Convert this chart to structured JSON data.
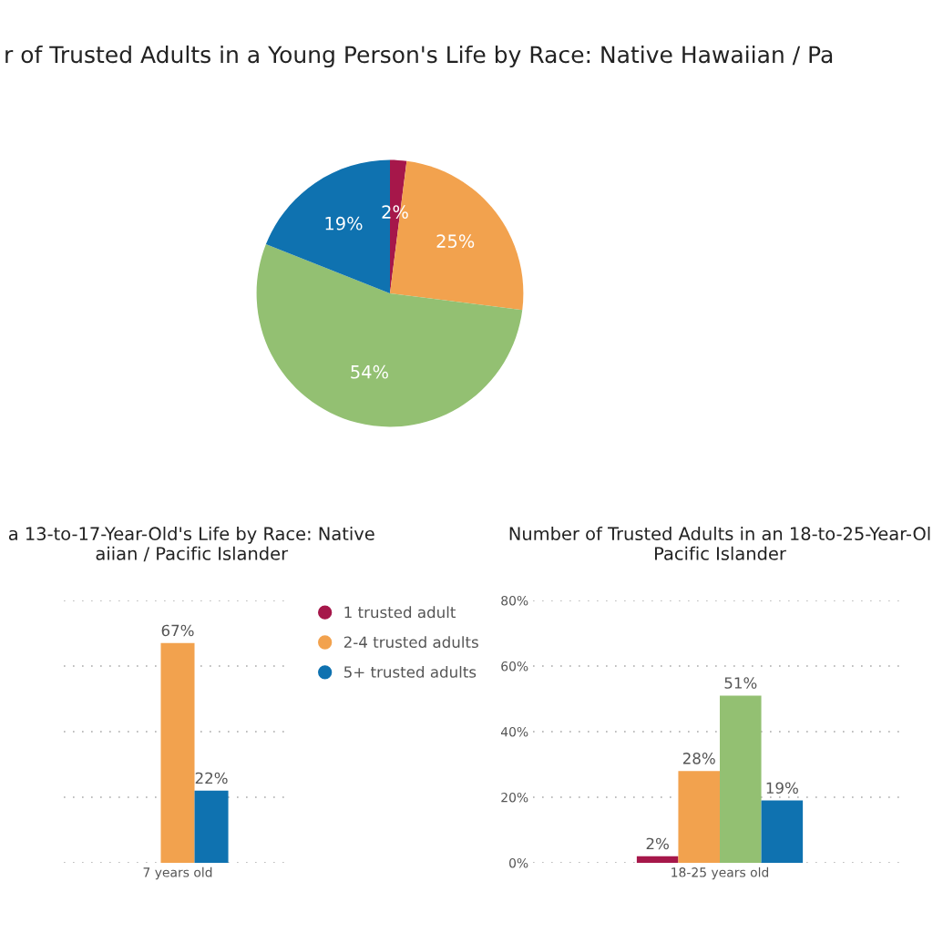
{
  "chart_data": [
    {
      "type": "pie",
      "title": "r of Trusted Adults in a Young Person's Life by Race: Native Hawaiian / Pa",
      "categories": [
        null,
        null,
        null,
        null
      ],
      "values": [
        2,
        25,
        54,
        19
      ],
      "value_labels": [
        "2%",
        "25%",
        "54%",
        "19%"
      ],
      "colors": [
        "#a6174a",
        "#f2a24e",
        "#93c072",
        "#0f72b0"
      ]
    },
    {
      "type": "bar",
      "title": "a 13-to-17-Year-Old's Life by Race: Native\naiian / Pacific Islander",
      "categories": [
        "7 years old"
      ],
      "series": [
        {
          "name": "1 trusted adult",
          "color": "#a6174a",
          "values": [
            null
          ],
          "value_labels": [
            null
          ]
        },
        {
          "name": "2-4 trusted adults",
          "color": "#f2a24e",
          "values": [
            67
          ],
          "value_labels": [
            "67%"
          ]
        },
        {
          "name": "5+ trusted adults",
          "color": "#0f72b0",
          "values": [
            22
          ],
          "value_labels": [
            "22%"
          ]
        }
      ],
      "ylim": [
        0,
        80
      ],
      "yticks": [
        {
          "value": 0,
          "label": null
        },
        {
          "value": 20,
          "label": null
        },
        {
          "value": 40,
          "label": null
        },
        {
          "value": 60,
          "label": null
        },
        {
          "value": 80,
          "label": null
        }
      ],
      "tick_labels": "x",
      "grid": "y",
      "legend": "top right"
    },
    {
      "type": "bar",
      "title": "Number of Trusted Adults in an 18-to-25-Year-Ol\nPacific Islander",
      "categories": [
        "18-25 years old"
      ],
      "series": [
        {
          "color": "#a6174a",
          "values": [
            2
          ],
          "value_labels": [
            "2%"
          ]
        },
        {
          "color": "#f2a24e",
          "values": [
            28
          ],
          "value_labels": [
            "28%"
          ]
        },
        {
          "color": "#93c072",
          "values": [
            51
          ],
          "value_labels": [
            "51%"
          ]
        },
        {
          "color": "#0f72b0",
          "values": [
            19
          ],
          "value_labels": [
            "19%"
          ]
        }
      ],
      "ylim": [
        0,
        80
      ],
      "yticks": [
        {
          "value": 0,
          "label": "0%"
        },
        {
          "value": 20,
          "label": "20%"
        },
        {
          "value": 40,
          "label": "40%"
        },
        {
          "value": 60,
          "label": "60%"
        },
        {
          "value": 80,
          "label": "80%"
        }
      ],
      "grid": "y"
    }
  ]
}
